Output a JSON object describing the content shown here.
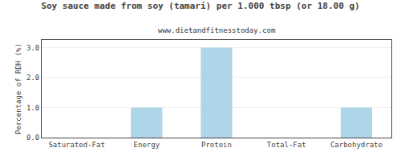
{
  "chart_data": {
    "type": "bar",
    "title": "Soy sauce made from soy (tamari) per 1.000 tbsp (or 18.00 g)",
    "subtitle": "www.dietandfitnesstoday.com",
    "categories": [
      "Saturated-Fat",
      "Energy",
      "Protein",
      "Total-Fat",
      "Carbohydrate"
    ],
    "values": [
      0.0,
      1.0,
      3.0,
      0.0,
      1.0
    ],
    "color": "#aed6e8",
    "ylabel": "Percentage of RDH (%)",
    "ylim": [
      0,
      3.25
    ],
    "yticks": [
      {
        "value": 0,
        "label": "0.0"
      },
      {
        "value": 1,
        "label": "1.0"
      },
      {
        "value": 2,
        "label": "2.0"
      },
      {
        "value": 3,
        "label": "3.0"
      }
    ],
    "grid": true
  }
}
